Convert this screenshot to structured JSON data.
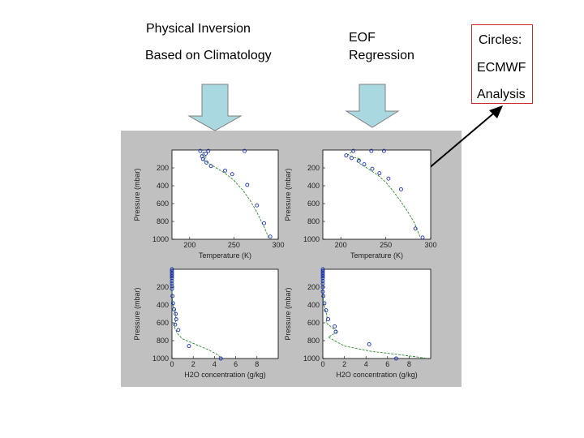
{
  "labels": {
    "physical_inversion": "Physical Inversion",
    "based_on_climatology": "Based on Climatology",
    "eof_line1": "EOF",
    "eof_line2": "Regression",
    "circles": "Circles:",
    "ecmwf": "ECMWF",
    "analysis": "Analysis"
  },
  "colors": {
    "arrow_fill": "#a9d8e0",
    "arrow_stroke": "#808080",
    "panel_bg": "#c0c0c0",
    "plot_bg": "#ffffff",
    "retrieval_line": "#2e8b2e",
    "circles": "#1a2fb0",
    "callout_border": "#cc2a2a"
  },
  "chart_data": [
    {
      "id": "temp-climatology",
      "type": "line",
      "xlabel": "Temperature (K)",
      "ylabel": "Pressure (mbar)",
      "xlim": [
        180,
        300
      ],
      "xticks": [
        200,
        250,
        300
      ],
      "ylim": [
        1000,
        0
      ],
      "yticks": [
        200,
        400,
        600,
        800,
        1000
      ],
      "series": [
        {
          "kind": "line",
          "x": [
            216,
            213,
            219,
            215,
            222,
            230,
            240,
            250,
            260,
            268,
            275,
            280,
            285,
            289
          ],
          "y": [
            20,
            50,
            80,
            110,
            150,
            200,
            260,
            340,
            450,
            560,
            680,
            780,
            880,
            980
          ]
        },
        {
          "kind": "markers",
          "x": [
            212,
            221,
            262,
            218,
            214,
            215,
            219,
            224,
            240,
            248,
            265,
            276,
            284,
            291
          ],
          "y": [
            10,
            10,
            10,
            40,
            70,
            100,
            140,
            180,
            230,
            270,
            390,
            620,
            820,
            970
          ]
        }
      ]
    },
    {
      "id": "temp-eof",
      "type": "line",
      "xlabel": "Temperature (K)",
      "ylabel": "Pressure (mbar)",
      "xlim": [
        180,
        300
      ],
      "xticks": [
        200,
        250,
        300
      ],
      "ylim": [
        1000,
        0
      ],
      "yticks": [
        200,
        400,
        600,
        800,
        1000
      ],
      "series": [
        {
          "kind": "line",
          "x": [
            212,
            208,
            214,
            222,
            218,
            224,
            232,
            241,
            250,
            259,
            267,
            275,
            282,
            288
          ],
          "y": [
            20,
            50,
            80,
            100,
            130,
            170,
            220,
            280,
            360,
            470,
            580,
            700,
            820,
            970
          ]
        },
        {
          "kind": "markers",
          "x": [
            214,
            234,
            248,
            206,
            212,
            220,
            226,
            235,
            243,
            253,
            267,
            283,
            291
          ],
          "y": [
            10,
            10,
            10,
            60,
            90,
            120,
            160,
            210,
            260,
            320,
            440,
            880,
            980
          ]
        }
      ]
    },
    {
      "id": "h2o-climatology",
      "type": "line",
      "xlabel": "H2O concentration (g/kg)",
      "ylabel": "Pressure (mbar)",
      "xlim": [
        0,
        10
      ],
      "xticks": [
        0,
        2,
        4,
        6,
        8
      ],
      "ylim": [
        1000,
        0
      ],
      "yticks": [
        200,
        400,
        600,
        800,
        1000
      ],
      "series": [
        {
          "kind": "line",
          "x": [
            0,
            0,
            0.02,
            0.08,
            0.3,
            0.4,
            0.2,
            0.5,
            1.0,
            2.2,
            3.4,
            4.2,
            4.7
          ],
          "y": [
            0,
            200,
            300,
            400,
            480,
            560,
            640,
            720,
            780,
            840,
            900,
            950,
            1000
          ]
        },
        {
          "kind": "markers",
          "x": [
            0,
            0,
            0,
            0,
            0,
            0,
            0,
            0,
            0,
            0,
            0.05,
            0.1,
            0.2,
            0.35,
            0.4,
            0.3,
            0.6,
            1.6,
            4.6
          ],
          "y": [
            0,
            20,
            40,
            60,
            80,
            100,
            130,
            160,
            190,
            220,
            300,
            380,
            450,
            500,
            560,
            620,
            680,
            860,
            1000
          ]
        }
      ]
    },
    {
      "id": "h2o-eof",
      "type": "line",
      "xlabel": "H2O concentration (g/kg)",
      "ylabel": "Pressure (mbar)",
      "xlim": [
        0,
        10
      ],
      "xticks": [
        0,
        2,
        4,
        6,
        8
      ],
      "ylim": [
        1000,
        0
      ],
      "yticks": [
        200,
        400,
        600,
        800,
        1000
      ],
      "series": [
        {
          "kind": "line",
          "x": [
            0,
            0,
            0.05,
            0.2,
            0.4,
            0.3,
            0.9,
            1.4,
            0.5,
            2.0,
            4.5,
            7.0,
            8.6,
            9.7
          ],
          "y": [
            0,
            200,
            350,
            450,
            520,
            600,
            660,
            700,
            760,
            860,
            920,
            955,
            980,
            1000
          ]
        },
        {
          "kind": "markers",
          "x": [
            0,
            0,
            0,
            0,
            0,
            0,
            0,
            0,
            0,
            0,
            0.05,
            0.15,
            0.3,
            0.5,
            1.1,
            1.2,
            4.3,
            6.8
          ],
          "y": [
            0,
            20,
            40,
            60,
            80,
            100,
            130,
            160,
            200,
            250,
            300,
            380,
            460,
            560,
            640,
            700,
            840,
            1000
          ]
        }
      ]
    }
  ]
}
